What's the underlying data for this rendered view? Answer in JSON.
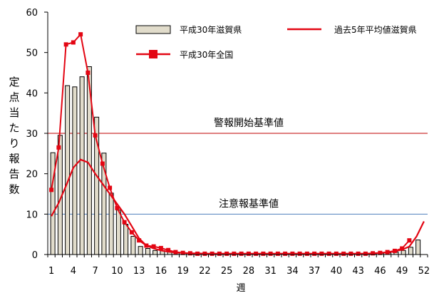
{
  "chart_data": {
    "type": "bar",
    "title": "",
    "xlabel": "週",
    "ylabel": "定点当たり報告数",
    "ylim": [
      0,
      60
    ],
    "yticks": [
      0,
      10,
      20,
      30,
      40,
      50,
      60
    ],
    "x": [
      1,
      2,
      3,
      4,
      5,
      6,
      7,
      8,
      9,
      10,
      11,
      12,
      13,
      14,
      15,
      16,
      17,
      18,
      19,
      20,
      21,
      22,
      23,
      24,
      25,
      26,
      27,
      28,
      29,
      30,
      31,
      32,
      33,
      34,
      35,
      36,
      37,
      38,
      39,
      40,
      41,
      42,
      43,
      44,
      45,
      46,
      47,
      48,
      49,
      50,
      51,
      52
    ],
    "xtick_labels": [
      "1",
      "4",
      "7",
      "10",
      "13",
      "16",
      "19",
      "22",
      "25",
      "28",
      "31",
      "34",
      "37",
      "40",
      "43",
      "46",
      "49",
      "52"
    ],
    "grid": false,
    "legend_position": "top",
    "series": [
      {
        "name": "平成30年滋賀県",
        "kind": "bar",
        "color": "#e1dccb",
        "values": [
          25.2,
          29.5,
          41.8,
          41.5,
          44.0,
          46.5,
          34.0,
          25.1,
          15.2,
          11.0,
          7.5,
          4.5,
          2.0,
          1.5,
          1.0,
          1.0,
          0.8,
          0.6,
          0.4,
          0.3,
          0.2,
          0.2,
          0.2,
          0.2,
          0.1,
          0.1,
          0.1,
          0.1,
          0.1,
          0.1,
          0.1,
          0.1,
          0.1,
          0.1,
          0.1,
          0.1,
          0.1,
          0.1,
          0.1,
          0.1,
          0.1,
          0.1,
          0.2,
          0.2,
          0.2,
          0.3,
          0.4,
          0.6,
          1.0,
          1.8,
          3.6,
          null
        ]
      },
      {
        "name": "過去5年平均値滋賀県",
        "kind": "line",
        "color": "#e30613",
        "values": [
          9.5,
          12.8,
          17.0,
          21.5,
          23.5,
          22.8,
          20.0,
          17.5,
          15.0,
          12.5,
          10.0,
          7.0,
          4.0,
          2.2,
          1.5,
          1.0,
          0.7,
          0.5,
          0.4,
          0.3,
          0.3,
          0.2,
          0.2,
          0.2,
          0.2,
          0.2,
          0.2,
          0.2,
          0.2,
          0.2,
          0.2,
          0.2,
          0.2,
          0.2,
          0.2,
          0.2,
          0.2,
          0.2,
          0.2,
          0.2,
          0.2,
          0.2,
          0.2,
          0.2,
          0.3,
          0.4,
          0.5,
          0.8,
          1.2,
          2.0,
          4.5,
          8.2
        ]
      },
      {
        "name": "平成30年全国",
        "kind": "line-marker",
        "color": "#e30613",
        "values": [
          16.0,
          26.5,
          52.0,
          52.5,
          54.5,
          45.0,
          29.5,
          22.5,
          16.5,
          11.5,
          8.0,
          5.5,
          3.5,
          2.2,
          2.0,
          1.6,
          1.1,
          0.6,
          0.4,
          0.3,
          0.2,
          0.2,
          0.2,
          0.2,
          0.2,
          0.2,
          0.2,
          0.2,
          0.2,
          0.2,
          0.2,
          0.2,
          0.2,
          0.2,
          0.2,
          0.2,
          0.2,
          0.2,
          0.2,
          0.2,
          0.2,
          0.2,
          0.2,
          0.2,
          0.3,
          0.4,
          0.6,
          0.9,
          1.5,
          3.5,
          null,
          null
        ]
      }
    ],
    "thresholds": [
      {
        "label": "警報開始基準値",
        "value": 30,
        "color": "#c00000"
      },
      {
        "label": "注意報基準値",
        "value": 10,
        "color": "#4f81bd"
      }
    ]
  }
}
